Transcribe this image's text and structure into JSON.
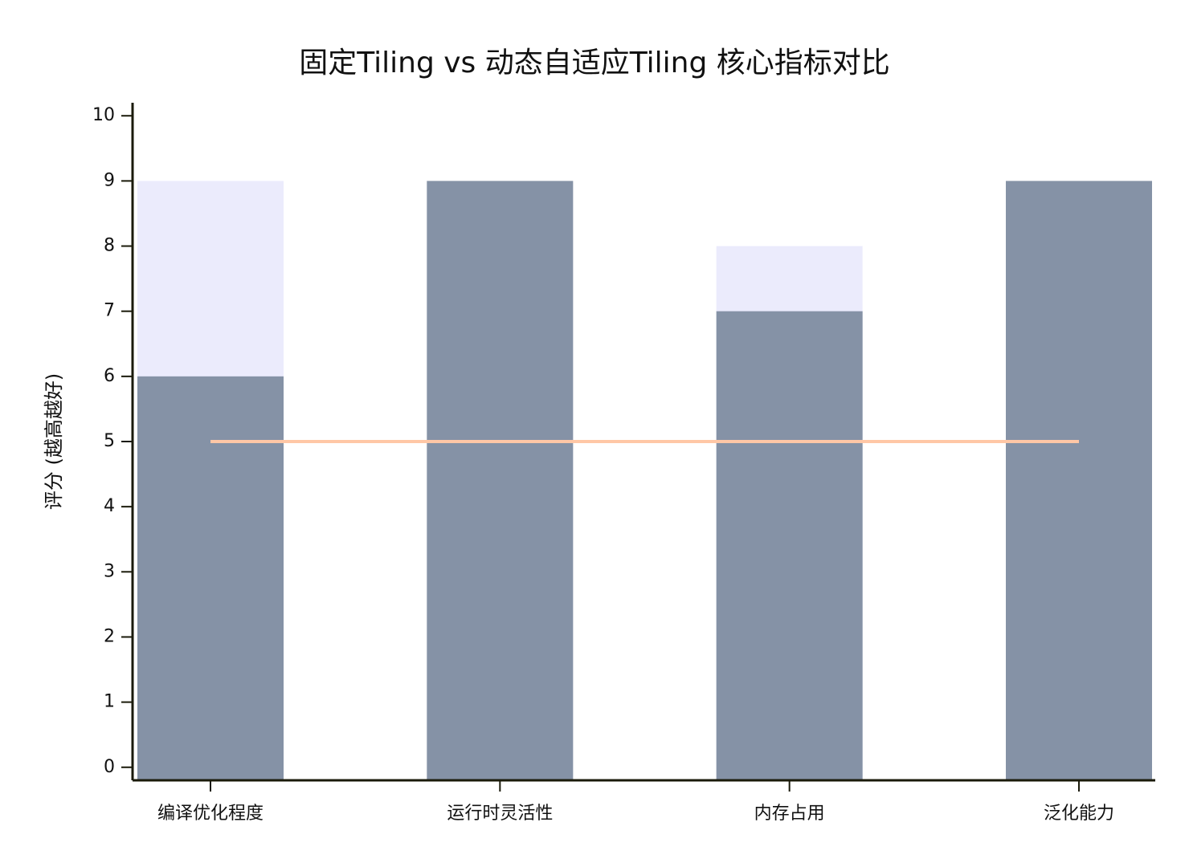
{
  "chart_data": {
    "type": "bar",
    "title": "固定Tiling vs 动态自适应Tiling 核心指标对比",
    "y_label": "评分 (越高越好)",
    "categories": [
      "编译优化程度",
      "运行时灵活性",
      "内存占用",
      "泛化能力"
    ],
    "series": [
      {
        "type": "bar",
        "color": "#ebebfc",
        "values": [
          9,
          null,
          8,
          null
        ]
      },
      {
        "type": "bar",
        "color": "#8592a6",
        "values": [
          6,
          9,
          7,
          9
        ]
      },
      {
        "type": "line",
        "color": "#ffc7a6",
        "values": [
          5,
          5,
          5,
          5
        ]
      }
    ],
    "ylim": [
      -0.2,
      10.2
    ],
    "yticks": [
      0,
      1,
      2,
      3,
      4,
      5,
      6,
      7,
      8,
      9,
      10
    ]
  }
}
